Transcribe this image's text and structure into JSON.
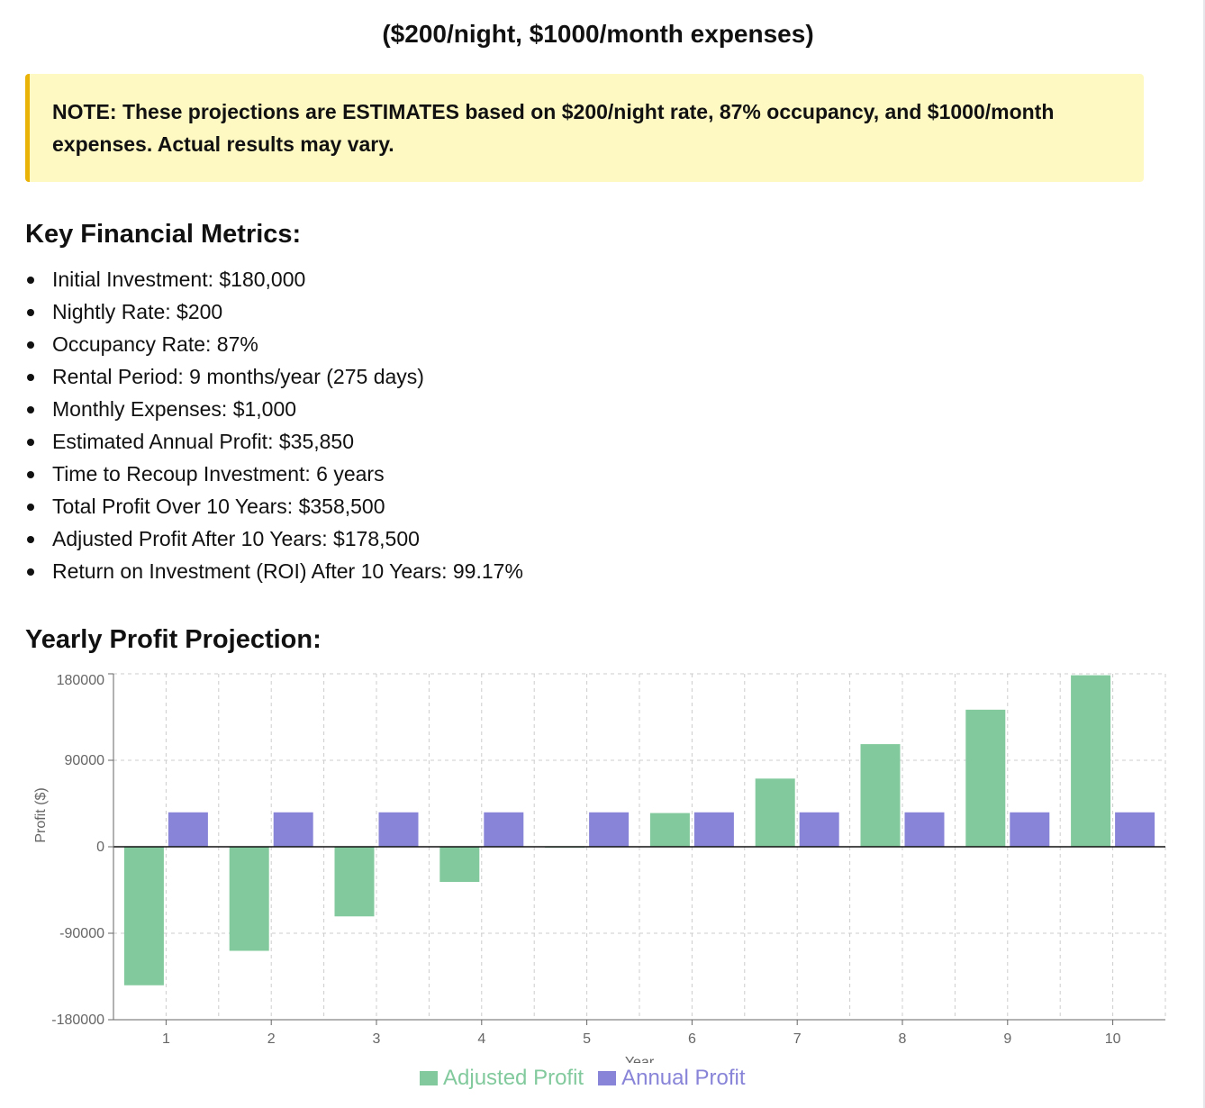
{
  "subtitle": "($200/night, $1000/month expenses)",
  "note": "NOTE: These projections are ESTIMATES based on $200/night rate, 87% occupancy, and $1000/month expenses. Actual results may vary.",
  "metrics_heading": "Key Financial Metrics:",
  "metrics": [
    "Initial Investment: $180,000",
    "Nightly Rate: $200",
    "Occupancy Rate: 87%",
    "Rental Period: 9 months/year (275 days)",
    "Monthly Expenses: $1,000",
    "Estimated Annual Profit: $35,850",
    "Time to Recoup Investment: 6 years",
    "Total Profit Over 10 Years: $358,500",
    "Adjusted Profit After 10 Years: $178,500",
    "Return on Investment (ROI) After 10 Years: 99.17%"
  ],
  "chart_heading": "Yearly Profit Projection:",
  "chart_data": {
    "type": "bar",
    "categories": [
      "1",
      "2",
      "3",
      "4",
      "5",
      "6",
      "7",
      "8",
      "9",
      "10"
    ],
    "series": [
      {
        "name": "Adjusted Profit",
        "color": "#82ca9d",
        "values": [
          -144150,
          -108300,
          -72450,
          -36600,
          -750,
          35100,
          70950,
          106800,
          142650,
          178500
        ]
      },
      {
        "name": "Annual Profit",
        "color": "#8884d8",
        "values": [
          35850,
          35850,
          35850,
          35850,
          35850,
          35850,
          35850,
          35850,
          35850,
          35850
        ]
      }
    ],
    "xlabel": "Year",
    "ylabel": "Profit ($)",
    "ylim": [
      -180000,
      180000
    ],
    "yticks": [
      -180000,
      -90000,
      0,
      90000,
      180000
    ],
    "grid": true,
    "legend": "bottom-center"
  }
}
